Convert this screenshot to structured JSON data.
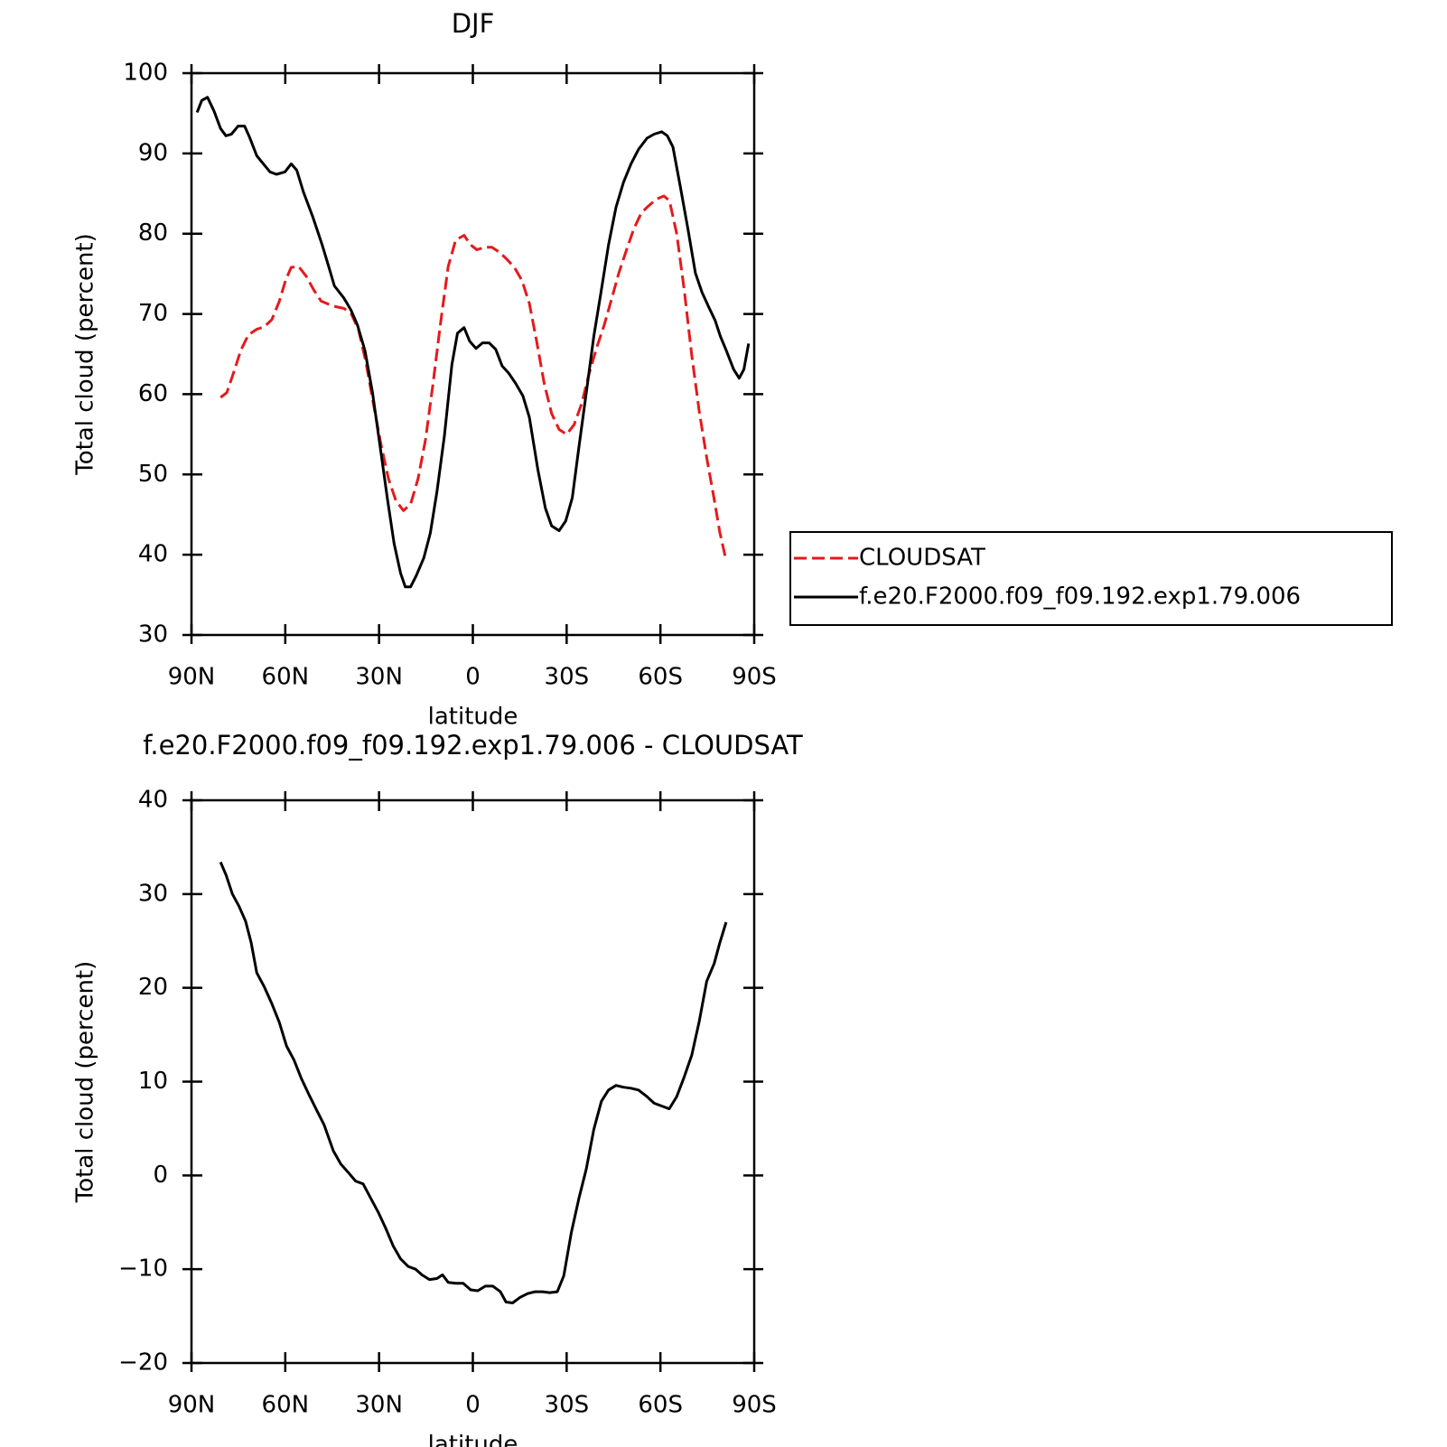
{
  "chart_data": [
    {
      "type": "line",
      "title": "DJF",
      "x_label": "latitude",
      "y_label": "Total cloud (percent)",
      "xlim": [
        90,
        -90
      ],
      "ylim": [
        30,
        100
      ],
      "xticks": [
        {
          "value": 90,
          "label": "90N"
        },
        {
          "value": 60,
          "label": "60N"
        },
        {
          "value": 30,
          "label": "30N"
        },
        0,
        {
          "value": -30,
          "label": "30S"
        },
        {
          "value": -60,
          "label": "60S"
        },
        {
          "value": -90,
          "label": "90S"
        }
      ],
      "yticks": [
        30,
        40,
        50,
        60,
        70,
        80,
        90,
        100
      ],
      "legend": "right",
      "series": [
        {
          "name": "CLOUDSAT",
          "color": "#e41a1c",
          "style": "dashed",
          "x": [
            80.7,
            78.7,
            76.6,
            74.2,
            71.8,
            69.1,
            66.7,
            64.3,
            61.9,
            59.9,
            58.1,
            55.7,
            53.3,
            50.9,
            48.5,
            46.1,
            43.7,
            41.3,
            39,
            36.6,
            34.2,
            31.8,
            29.4,
            27,
            24.6,
            22.2,
            19.9,
            17.5,
            15.1,
            12.7,
            10.3,
            7.9,
            5.5,
            2.8,
            0.7,
            -1.3,
            -3.7,
            -6.1,
            -8.5,
            -10.9,
            -13.3,
            -15.7,
            -18.1,
            -20.4,
            -22.8,
            -25.2,
            -27.6,
            -30,
            -32.4,
            -34.8,
            -37.2,
            -39.6,
            -42,
            -44.4,
            -46.7,
            -49.1,
            -51.5,
            -53.9,
            -56.3,
            -58.7,
            -61.1,
            -62.9,
            -65.2,
            -67.6,
            -70,
            -72.4,
            -74.8,
            -77.2,
            -79,
            -81
          ],
          "values": [
            59.6,
            60.2,
            62.6,
            65.5,
            67.4,
            68.1,
            68.4,
            69.3,
            71.6,
            74.2,
            75.8,
            75.9,
            74.7,
            73,
            71.6,
            71.2,
            70.9,
            70.7,
            70.1,
            68.1,
            64,
            58.8,
            53.8,
            49.5,
            46.7,
            45.5,
            46.3,
            49.5,
            54.4,
            61.4,
            69,
            75.9,
            79.2,
            79.8,
            78.6,
            78,
            78.3,
            78.3,
            77.7,
            76.8,
            75.8,
            74.2,
            71.3,
            66.6,
            61.4,
            57.6,
            55.6,
            55,
            56.2,
            58.8,
            62.6,
            65.8,
            68.6,
            71.9,
            75.1,
            77.9,
            80.6,
            82.6,
            83.5,
            84.3,
            84.7,
            84.1,
            80,
            73,
            64.9,
            57.9,
            52.1,
            46.9,
            42.8,
            39.3
          ]
        },
        {
          "name": "f.e20.F2000.f09_f09.192.exp1.79.006",
          "color": "#000000",
          "style": "solid",
          "x": [
            88.2,
            86.7,
            84.9,
            82.8,
            80.7,
            79,
            77.2,
            75.1,
            73,
            71.5,
            69.1,
            67,
            64.9,
            62.8,
            60.1,
            58.1,
            56.3,
            54.2,
            51.2,
            48.2,
            46.1,
            44.3,
            41.3,
            39,
            36.9,
            34.5,
            32.1,
            29.7,
            27.3,
            25.2,
            23.1,
            21.6,
            19.9,
            18.1,
            15.7,
            13.6,
            11.5,
            9.1,
            6.7,
            4.9,
            2.8,
            1,
            -1,
            -3.1,
            -5.2,
            -7.3,
            -9.4,
            -11.5,
            -13.6,
            -16,
            -18.1,
            -20.8,
            -23.2,
            -25.2,
            -27.6,
            -29.7,
            -31.8,
            -33.9,
            -36.3,
            -38.7,
            -41.1,
            -43.4,
            -45.8,
            -48.2,
            -50.6,
            -53,
            -55.7,
            -58,
            -60.4,
            -62.2,
            -64,
            -66.4,
            -68.8,
            -71.2,
            -73.3,
            -75.4,
            -77.5,
            -79.2,
            -81,
            -83.4,
            -85.2,
            -86.7,
            -88.2
          ],
          "values": [
            95.1,
            96.6,
            97,
            95.3,
            93.1,
            92.2,
            92.4,
            93.4,
            93.4,
            92.1,
            89.7,
            88.7,
            87.7,
            87.4,
            87.7,
            88.7,
            87.9,
            85.2,
            82.1,
            78.6,
            75.9,
            73.5,
            72,
            70.5,
            68.6,
            65.4,
            60.2,
            53.6,
            46.9,
            41.4,
            37.7,
            36,
            36,
            37.4,
            39.6,
            42.7,
            47.8,
            54.8,
            63.7,
            67.6,
            68.3,
            66.6,
            65.7,
            66.4,
            66.4,
            65.6,
            63.5,
            62.6,
            61.4,
            59.8,
            57.1,
            50.6,
            45.8,
            43.6,
            43,
            44.2,
            47.1,
            53.3,
            60.2,
            67.2,
            73,
            78.6,
            83.3,
            86.4,
            88.7,
            90.5,
            91.9,
            92.4,
            92.7,
            92.2,
            90.8,
            85.8,
            80.6,
            75.1,
            72.7,
            70.9,
            69.2,
            67.2,
            65.5,
            63.1,
            62,
            63.1,
            66.3
          ]
        }
      ]
    },
    {
      "type": "line",
      "title": "f.e20.F2000.f09_f09.192.exp1.79.006 - CLOUDSAT",
      "x_label": "latitude",
      "y_label": "Total cloud (percent)",
      "xlim": [
        90,
        -90
      ],
      "ylim": [
        -20,
        40
      ],
      "xticks": [
        {
          "value": 90,
          "label": "90N"
        },
        {
          "value": 60,
          "label": "60N"
        },
        {
          "value": 30,
          "label": "30N"
        },
        0,
        {
          "value": -30,
          "label": "30S"
        },
        {
          "value": -60,
          "label": "60S"
        },
        {
          "value": -90,
          "label": "90S"
        }
      ],
      "yticks": [
        {
          "value": -20,
          "label": "−20"
        },
        {
          "value": -10,
          "label": "−10"
        },
        0,
        10,
        20,
        30,
        40
      ],
      "series": [
        {
          "color": "#000000",
          "style": "solid",
          "x": [
            80.7,
            78.9,
            76.9,
            74.8,
            72.7,
            70.9,
            69.1,
            66.7,
            64.3,
            61.9,
            59.6,
            57.2,
            54.8,
            52.4,
            50,
            47.6,
            44.6,
            42.2,
            39.8,
            37.5,
            35.1,
            32.7,
            30.3,
            27.9,
            25.5,
            23.1,
            20.7,
            18.3,
            16.3,
            13.9,
            11.5,
            9.7,
            7.9,
            5.5,
            3.1,
            0.7,
            -1.6,
            -4,
            -6.4,
            -8.8,
            -10.6,
            -12.7,
            -15.1,
            -17.5,
            -19.9,
            -22.3,
            -24.6,
            -27,
            -29.1,
            -31.5,
            -33.9,
            -36.3,
            -38.7,
            -41.1,
            -43.4,
            -45.8,
            -48.2,
            -50.6,
            -53,
            -55.7,
            -58,
            -60.4,
            -62.8,
            -65.2,
            -67.6,
            -70,
            -72.4,
            -74.8,
            -77.2,
            -79,
            -81
          ],
          "values": [
            33.4,
            32,
            30,
            28.7,
            27.1,
            24.8,
            21.6,
            20.1,
            18.3,
            16.3,
            13.8,
            12.3,
            10.3,
            8.6,
            7,
            5.4,
            2.6,
            1.2,
            0.3,
            -0.6,
            -0.9,
            -2.4,
            -3.9,
            -5.6,
            -7.5,
            -8.9,
            -9.7,
            -10,
            -10.6,
            -11.1,
            -11,
            -10.6,
            -11.4,
            -11.5,
            -11.5,
            -12.2,
            -12.3,
            -11.8,
            -11.8,
            -12.4,
            -13.5,
            -13.6,
            -13,
            -12.6,
            -12.4,
            -12.4,
            -12.5,
            -12.4,
            -10.7,
            -6.1,
            -2.5,
            0.7,
            4.9,
            7.9,
            9.1,
            9.6,
            9.4,
            9.3,
            9.1,
            8.4,
            7.7,
            7.4,
            7.1,
            8.4,
            10.5,
            12.8,
            16.4,
            20.7,
            22.6,
            24.8,
            27
          ]
        }
      ]
    }
  ]
}
